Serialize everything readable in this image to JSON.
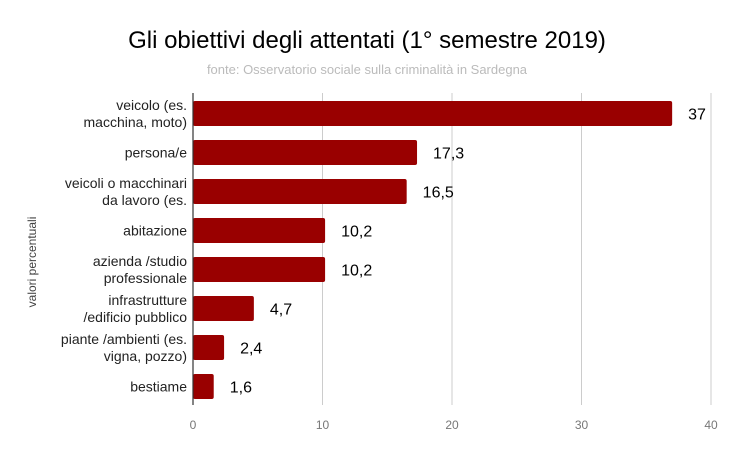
{
  "chart_data": {
    "type": "bar",
    "orientation": "horizontal",
    "title": "Gli obiettivi degli attentati (1° semestre 2019)",
    "subtitle": "fonte: Osservatorio sociale sulla criminalità in Sardegna",
    "xlabel": "",
    "ylabel": "valori percentuali",
    "categories": [
      [
        "veicolo (es.",
        "macchina, moto)"
      ],
      [
        "persona/e"
      ],
      [
        "veicoli o macchinari",
        "da lavoro (es."
      ],
      [
        "abitazione"
      ],
      [
        "azienda /studio",
        "professionale"
      ],
      [
        "infrastrutture",
        "/edificio pubblico"
      ],
      [
        "piante /ambienti (es.",
        "vigna, pozzo)"
      ],
      [
        "bestiame"
      ]
    ],
    "values": [
      37,
      17.3,
      16.5,
      10.2,
      10.2,
      4.7,
      2.4,
      1.6
    ],
    "data_labels": [
      "37",
      "17,3",
      "16,5",
      "10,2",
      "10,2",
      "4,7",
      "2,4",
      "1,6"
    ],
    "xlim": [
      0,
      40
    ],
    "xticks": [
      0,
      10,
      20,
      30,
      40
    ],
    "grid": true,
    "legend": "none",
    "bar_color": "#990000"
  }
}
